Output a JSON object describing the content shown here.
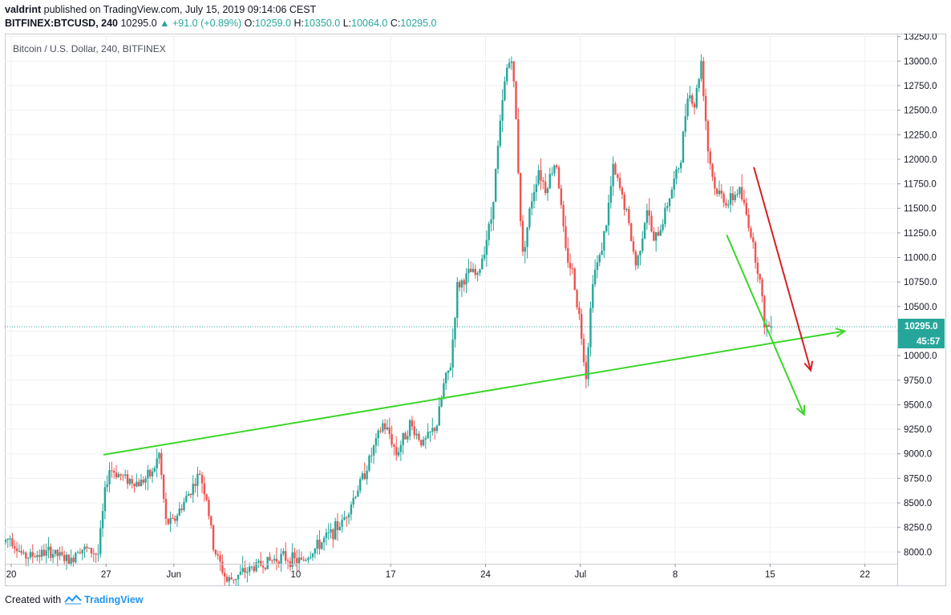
{
  "header": {
    "publisher": "valdrint",
    "published_text": "published on TradingView.com, July 15, 2019 09:14:06 CEST",
    "symbol": "BITFINEX:BTCUSD, 240",
    "last": "10295.0",
    "change": "▲ +91.0 (+0.89%)",
    "o_label": "O:",
    "o": "10259.0",
    "h_label": "H:",
    "h": "10350.0",
    "l_label": "L:",
    "l": "10064.0",
    "c_label": "C:",
    "c": "10295.0"
  },
  "footer": {
    "created_with": "Created with",
    "brand": "TradingView"
  },
  "colors": {
    "up": "#26a69a",
    "down": "#ef5350",
    "trend_green": "#3bd62a",
    "trend_red": "#d61f1f",
    "grid": "#eef0f3"
  },
  "chart_data": {
    "type": "candlestick",
    "title": "Bitcoin / U.S. Dollar, 240, BITFINEX",
    "timeframe": "240",
    "x_ticks": [
      {
        "label": "20",
        "day": 0
      },
      {
        "label": "27",
        "day": 7
      },
      {
        "label": "Jun",
        "day": 12
      },
      {
        "label": "10",
        "day": 21
      },
      {
        "label": "17",
        "day": 28
      },
      {
        "label": "24",
        "day": 35
      },
      {
        "label": "Jul",
        "day": 42
      },
      {
        "label": "8",
        "day": 49
      },
      {
        "label": "15",
        "day": 56
      },
      {
        "label": "22",
        "day": 63
      }
    ],
    "y_ticks": [
      "13250.0",
      "13000.0",
      "12750.0",
      "12500.0",
      "12250.0",
      "12000.0",
      "11750.0",
      "11500.0",
      "11250.0",
      "11000.0",
      "10750.0",
      "10500.0",
      "10250.0",
      "10000.0",
      "9750.0",
      "9500.0",
      "9250.0",
      "9000.0",
      "8750.0",
      "8500.0",
      "8250.0",
      "8000.0"
    ],
    "ylim": [
      7880,
      13280
    ],
    "last_price": {
      "value": 10295.0,
      "label": "10295.0",
      "countdown": "45:57"
    },
    "anchors": [
      {
        "day": -0.5,
        "price": 8100
      },
      {
        "day": 0,
        "price": 8150
      },
      {
        "day": 1,
        "price": 7950
      },
      {
        "day": 3,
        "price": 8000
      },
      {
        "day": 4.5,
        "price": 7900
      },
      {
        "day": 5,
        "price": 8050
      },
      {
        "day": 6.5,
        "price": 7980
      },
      {
        "day": 7,
        "price": 8600
      },
      {
        "day": 7.3,
        "price": 8850
      },
      {
        "day": 8.5,
        "price": 8750
      },
      {
        "day": 9.5,
        "price": 8700
      },
      {
        "day": 10.5,
        "price": 8800
      },
      {
        "day": 11,
        "price": 9000
      },
      {
        "day": 11.5,
        "price": 8300
      },
      {
        "day": 12,
        "price": 8300
      },
      {
        "day": 13,
        "price": 8550
      },
      {
        "day": 14,
        "price": 8800
      },
      {
        "day": 14.5,
        "price": 8550
      },
      {
        "day": 15,
        "price": 8050
      },
      {
        "day": 16,
        "price": 7700
      },
      {
        "day": 18,
        "price": 7850
      },
      {
        "day": 19,
        "price": 7900
      },
      {
        "day": 20,
        "price": 7950
      },
      {
        "day": 21.5,
        "price": 7900
      },
      {
        "day": 23,
        "price": 8100
      },
      {
        "day": 24.5,
        "price": 8300
      },
      {
        "day": 26,
        "price": 8750
      },
      {
        "day": 27.5,
        "price": 9300
      },
      {
        "day": 28,
        "price": 9200
      },
      {
        "day": 28.5,
        "price": 9000
      },
      {
        "day": 29.5,
        "price": 9300
      },
      {
        "day": 30.5,
        "price": 9100
      },
      {
        "day": 31.5,
        "price": 9300
      },
      {
        "day": 32,
        "price": 9700
      },
      {
        "day": 32.5,
        "price": 9900
      },
      {
        "day": 33,
        "price": 10700
      },
      {
        "day": 34,
        "price": 10850
      },
      {
        "day": 34.5,
        "price": 10800
      },
      {
        "day": 35.5,
        "price": 11400
      },
      {
        "day": 36.2,
        "price": 12400
      },
      {
        "day": 36.6,
        "price": 12900
      },
      {
        "day": 37,
        "price": 13050
      },
      {
        "day": 37.3,
        "price": 12500
      },
      {
        "day": 37.8,
        "price": 11000
      },
      {
        "day": 38.5,
        "price": 11600
      },
      {
        "day": 39,
        "price": 11900
      },
      {
        "day": 39.5,
        "price": 11700
      },
      {
        "day": 40.3,
        "price": 12000
      },
      {
        "day": 41,
        "price": 11050
      },
      {
        "day": 41.5,
        "price": 10850
      },
      {
        "day": 42,
        "price": 10400
      },
      {
        "day": 42.5,
        "price": 9800
      },
      {
        "day": 43,
        "price": 10800
      },
      {
        "day": 43.5,
        "price": 11000
      },
      {
        "day": 44,
        "price": 11350
      },
      {
        "day": 44.5,
        "price": 11900
      },
      {
        "day": 45,
        "price": 11700
      },
      {
        "day": 45.5,
        "price": 11450
      },
      {
        "day": 46.2,
        "price": 10900
      },
      {
        "day": 47,
        "price": 11500
      },
      {
        "day": 47.5,
        "price": 11150
      },
      {
        "day": 48,
        "price": 11300
      },
      {
        "day": 48.5,
        "price": 11550
      },
      {
        "day": 49.5,
        "price": 12000
      },
      {
        "day": 50,
        "price": 12700
      },
      {
        "day": 50.5,
        "price": 12550
      },
      {
        "day": 51,
        "price": 13000
      },
      {
        "day": 51.5,
        "price": 12100
      },
      {
        "day": 52,
        "price": 11700
      },
      {
        "day": 53,
        "price": 11550
      },
      {
        "day": 53.8,
        "price": 11700
      },
      {
        "day": 54.5,
        "price": 11350
      },
      {
        "day": 55.3,
        "price": 10800
      },
      {
        "day": 55.7,
        "price": 10300
      },
      {
        "day": 56,
        "price": 10295
      }
    ],
    "drawings": [
      {
        "name": "support-trendline",
        "color": "green",
        "from": {
          "day": 6.8,
          "price": 8990
        },
        "to": {
          "day": 61.5,
          "price": 10250
        },
        "arrow": true
      },
      {
        "name": "steep-green-arrow",
        "color": "green",
        "from": {
          "day": 52.8,
          "price": 11230
        },
        "to": {
          "day": 58.5,
          "price": 9400
        },
        "arrow": true
      },
      {
        "name": "red-arrow",
        "color": "red",
        "from": {
          "day": 54.8,
          "price": 11920
        },
        "to": {
          "day": 59,
          "price": 9850
        },
        "arrow": true
      }
    ]
  }
}
